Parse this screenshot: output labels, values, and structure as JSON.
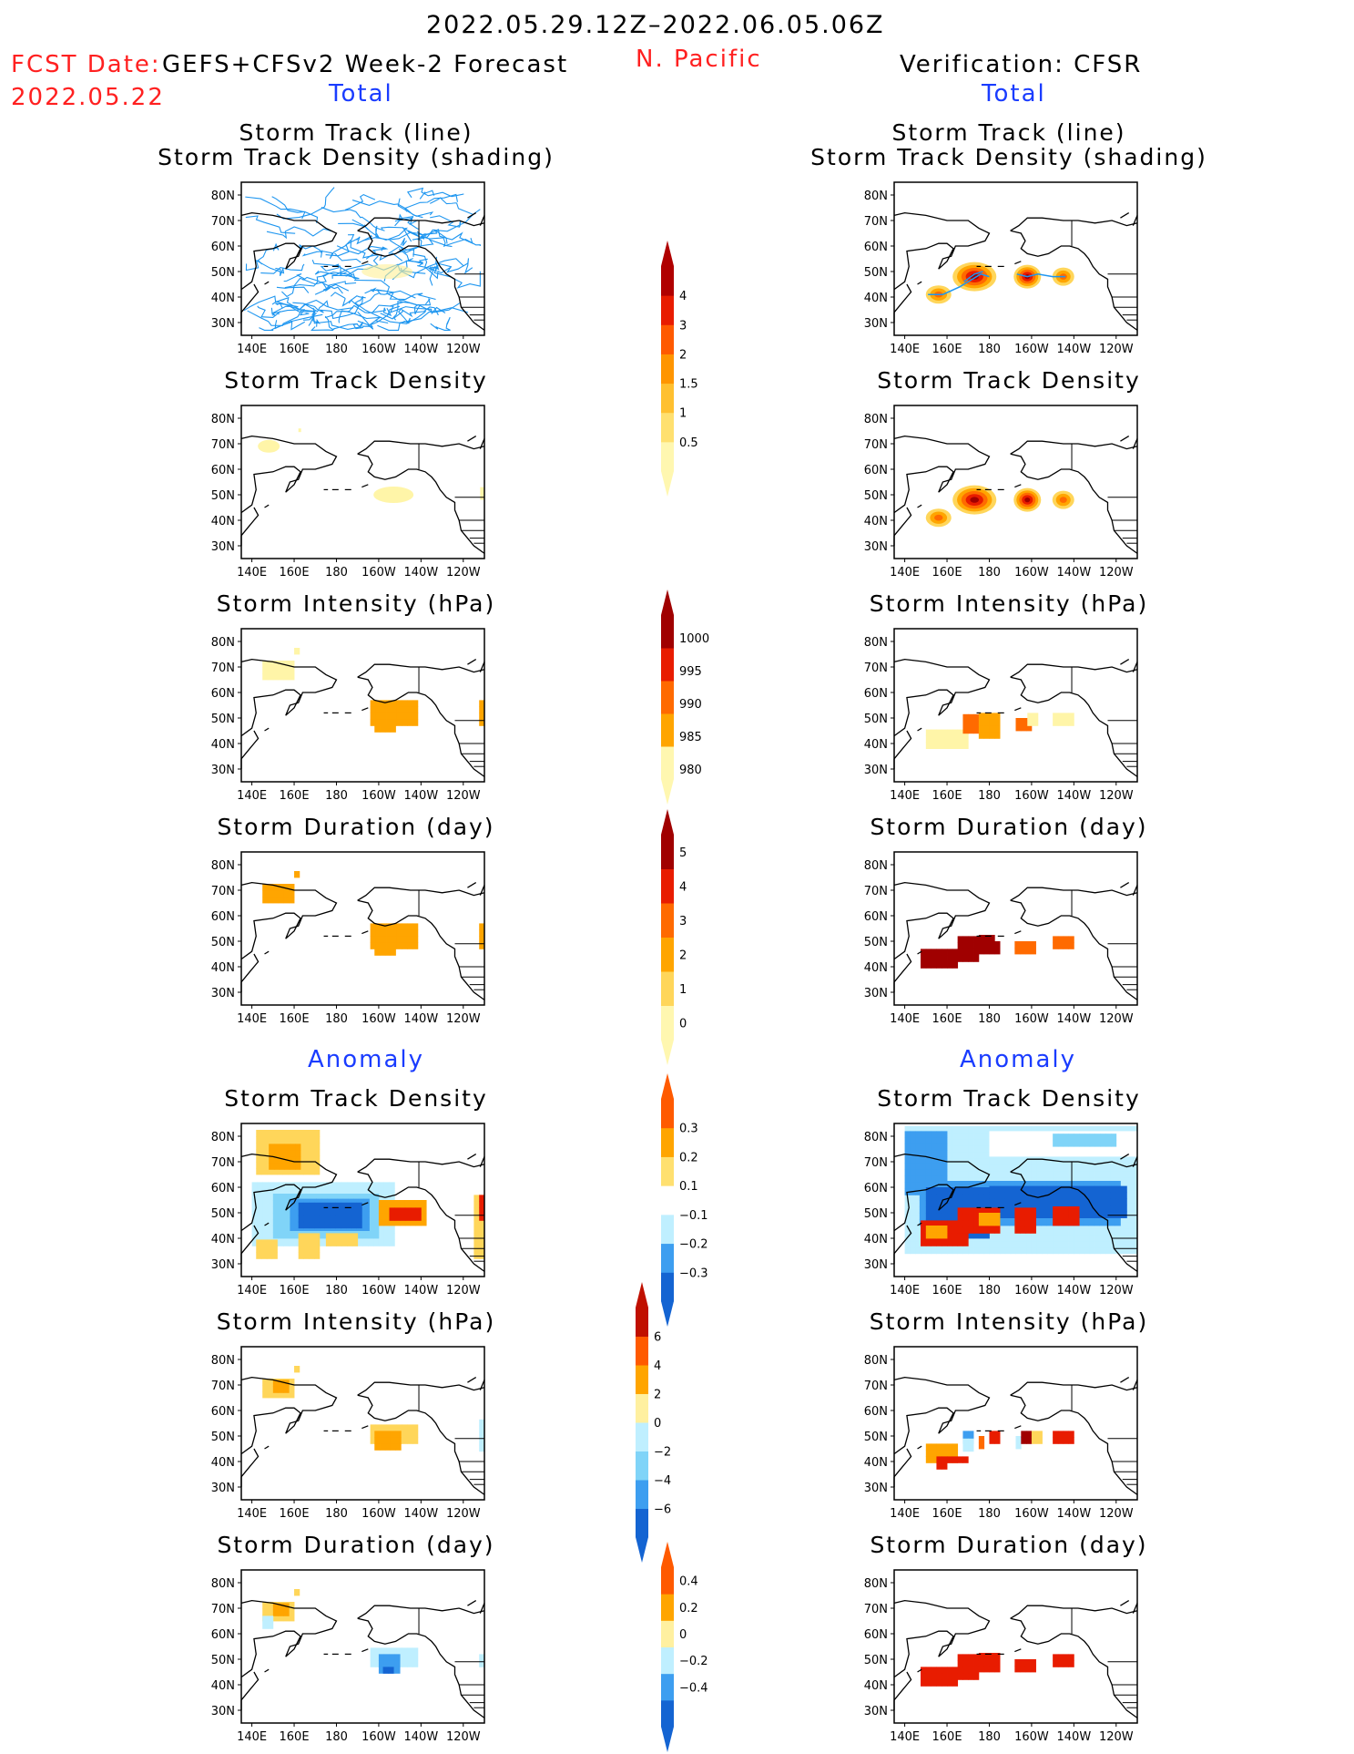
{
  "header": {
    "date_range": "2022.05.29.12Z–2022.06.05.06Z",
    "fcst_prefix": "FCST Date:",
    "fcst_model": "GEFS+CFSv2 Week-2 Forecast",
    "fcst_date": "2022.05.22",
    "region": "N. Pacific",
    "verification": "Verification: CFSR"
  },
  "columns": {
    "left_total": "Total",
    "right_total": "Total",
    "left_anomaly": "Anomaly",
    "right_anomaly": "Anomaly"
  },
  "panel_titles": {
    "track_line": "Storm Track (line)",
    "track_shading": "Storm Track Density (shading)",
    "density": "Storm Track Density",
    "intensity": "Storm Intensity (hPa)",
    "duration": "Storm Duration (day)"
  },
  "axes": {
    "lat_labels": [
      "80N",
      "70N",
      "60N",
      "50N",
      "40N",
      "30N"
    ],
    "lon_labels": [
      "140E",
      "160E",
      "180",
      "160W",
      "140W",
      "120W"
    ]
  },
  "colorbars": {
    "density_total": [
      "4",
      "3",
      "2",
      "1.5",
      "1",
      "0.5"
    ],
    "intensity_total": [
      "1000",
      "995",
      "990",
      "985",
      "980"
    ],
    "duration_total": [
      "5",
      "4",
      "3",
      "2",
      "1",
      "0"
    ],
    "density_anom": [
      "0.3",
      "0.2",
      "0.1",
      "−0.1",
      "−0.2",
      "−0.3"
    ],
    "intensity_anom": [
      "6",
      "4",
      "2",
      "0",
      "−2",
      "−4",
      "−6"
    ],
    "duration_anom": [
      "0.4",
      "0.2",
      "0",
      "−0.2",
      "−0.4"
    ]
  },
  "colors": {
    "title_red": "#ff2020",
    "title_blue": "#1a3cff",
    "track_line": "#1e96f0",
    "warm": [
      "#fff5a8",
      "#ffd65a",
      "#ffa500",
      "#ff6a00",
      "#e81c00",
      "#a00000"
    ],
    "cool": [
      "#bfefff",
      "#80d4f8",
      "#3d9ef0",
      "#1464d2"
    ]
  }
}
